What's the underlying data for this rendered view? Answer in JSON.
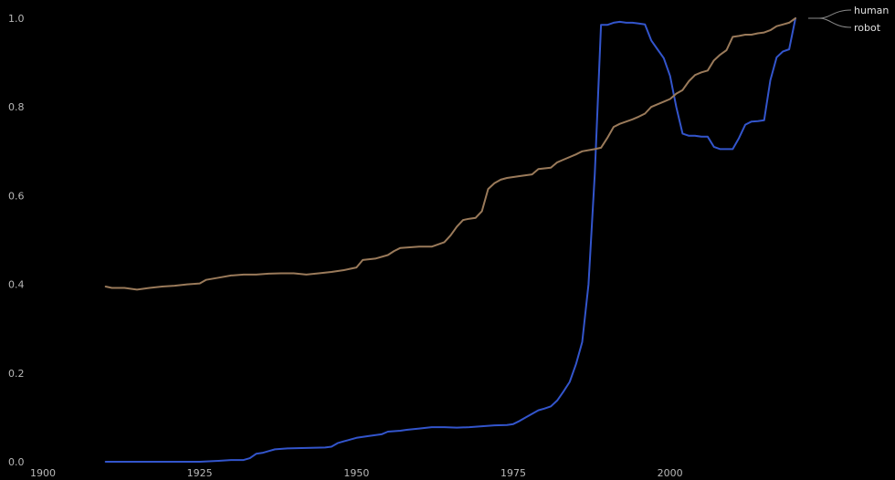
{
  "chart_data": {
    "type": "line",
    "title": "",
    "xlabel": "",
    "ylabel": "",
    "xlim": [
      1900,
      2035
    ],
    "ylim": [
      0,
      1
    ],
    "grid": false,
    "legend_position": "top-right",
    "background": "#000000",
    "x_ticks": [
      {
        "value": 1900,
        "label": "1900"
      },
      {
        "value": 1925,
        "label": "1925"
      },
      {
        "value": 1950,
        "label": "1950"
      },
      {
        "value": 1975,
        "label": "1975"
      },
      {
        "value": 2000,
        "label": "2000"
      }
    ],
    "y_ticks": [
      {
        "value": 0,
        "label": "0.0"
      },
      {
        "value": 0.2,
        "label": "0.2"
      },
      {
        "value": 0.4,
        "label": "0.4"
      },
      {
        "value": 0.6,
        "label": "0.6"
      },
      {
        "value": 0.8,
        "label": "0.8"
      },
      {
        "value": 1.0,
        "label": "1.0"
      }
    ],
    "series": [
      {
        "name": "human",
        "color": "#3355cc",
        "points": [
          [
            1910,
            0.0
          ],
          [
            1920,
            0.0
          ],
          [
            1925,
            0.0
          ],
          [
            1928,
            0.002
          ],
          [
            1930,
            0.004
          ],
          [
            1932,
            0.004
          ],
          [
            1933,
            0.008
          ],
          [
            1934,
            0.018
          ],
          [
            1935,
            0.02
          ],
          [
            1936,
            0.024
          ],
          [
            1937,
            0.028
          ],
          [
            1939,
            0.03
          ],
          [
            1942,
            0.031
          ],
          [
            1945,
            0.032
          ],
          [
            1946,
            0.034
          ],
          [
            1947,
            0.042
          ],
          [
            1948,
            0.046
          ],
          [
            1949,
            0.05
          ],
          [
            1950,
            0.054
          ],
          [
            1952,
            0.058
          ],
          [
            1954,
            0.062
          ],
          [
            1955,
            0.068
          ],
          [
            1957,
            0.07
          ],
          [
            1958,
            0.072
          ],
          [
            1960,
            0.075
          ],
          [
            1962,
            0.078
          ],
          [
            1964,
            0.078
          ],
          [
            1966,
            0.077
          ],
          [
            1968,
            0.078
          ],
          [
            1970,
            0.08
          ],
          [
            1972,
            0.082
          ],
          [
            1974,
            0.083
          ],
          [
            1975,
            0.085
          ],
          [
            1976,
            0.092
          ],
          [
            1977,
            0.1
          ],
          [
            1978,
            0.108
          ],
          [
            1979,
            0.116
          ],
          [
            1980,
            0.12
          ],
          [
            1981,
            0.125
          ],
          [
            1982,
            0.138
          ],
          [
            1983,
            0.158
          ],
          [
            1984,
            0.18
          ],
          [
            1985,
            0.22
          ],
          [
            1986,
            0.27
          ],
          [
            1987,
            0.4
          ],
          [
            1988,
            0.65
          ],
          [
            1989,
            0.985
          ],
          [
            1990,
            0.985
          ],
          [
            1991,
            0.99
          ],
          [
            1992,
            0.992
          ],
          [
            1993,
            0.99
          ],
          [
            1994,
            0.99
          ],
          [
            1995,
            0.988
          ],
          [
            1996,
            0.986
          ],
          [
            1997,
            0.95
          ],
          [
            1998,
            0.93
          ],
          [
            1999,
            0.91
          ],
          [
            2000,
            0.87
          ],
          [
            2001,
            0.8
          ],
          [
            2002,
            0.74
          ],
          [
            2003,
            0.735
          ],
          [
            2004,
            0.735
          ],
          [
            2005,
            0.733
          ],
          [
            2006,
            0.733
          ],
          [
            2007,
            0.71
          ],
          [
            2008,
            0.705
          ],
          [
            2009,
            0.705
          ],
          [
            2010,
            0.705
          ],
          [
            2011,
            0.73
          ],
          [
            2012,
            0.76
          ],
          [
            2013,
            0.767
          ],
          [
            2014,
            0.768
          ],
          [
            2015,
            0.77
          ],
          [
            2016,
            0.86
          ],
          [
            2017,
            0.912
          ],
          [
            2018,
            0.925
          ],
          [
            2019,
            0.93
          ],
          [
            2020,
            1.0
          ]
        ]
      },
      {
        "name": "robot",
        "color": "#9a7a5a",
        "points": [
          [
            1910,
            0.395
          ],
          [
            1911,
            0.392
          ],
          [
            1913,
            0.392
          ],
          [
            1915,
            0.388
          ],
          [
            1917,
            0.392
          ],
          [
            1919,
            0.395
          ],
          [
            1921,
            0.397
          ],
          [
            1923,
            0.4
          ],
          [
            1925,
            0.402
          ],
          [
            1926,
            0.41
          ],
          [
            1928,
            0.415
          ],
          [
            1930,
            0.42
          ],
          [
            1932,
            0.422
          ],
          [
            1934,
            0.422
          ],
          [
            1936,
            0.424
          ],
          [
            1938,
            0.425
          ],
          [
            1940,
            0.425
          ],
          [
            1942,
            0.422
          ],
          [
            1944,
            0.425
          ],
          [
            1946,
            0.428
          ],
          [
            1948,
            0.432
          ],
          [
            1950,
            0.438
          ],
          [
            1951,
            0.455
          ],
          [
            1953,
            0.458
          ],
          [
            1955,
            0.466
          ],
          [
            1956,
            0.475
          ],
          [
            1957,
            0.482
          ],
          [
            1958,
            0.483
          ],
          [
            1960,
            0.485
          ],
          [
            1962,
            0.485
          ],
          [
            1964,
            0.495
          ],
          [
            1965,
            0.51
          ],
          [
            1966,
            0.53
          ],
          [
            1967,
            0.545
          ],
          [
            1968,
            0.548
          ],
          [
            1969,
            0.55
          ],
          [
            1970,
            0.565
          ],
          [
            1971,
            0.615
          ],
          [
            1972,
            0.628
          ],
          [
            1973,
            0.636
          ],
          [
            1974,
            0.64
          ],
          [
            1976,
            0.644
          ],
          [
            1978,
            0.648
          ],
          [
            1979,
            0.66
          ],
          [
            1981,
            0.663
          ],
          [
            1982,
            0.675
          ],
          [
            1983,
            0.681
          ],
          [
            1985,
            0.693
          ],
          [
            1986,
            0.7
          ],
          [
            1988,
            0.705
          ],
          [
            1989,
            0.708
          ],
          [
            1990,
            0.73
          ],
          [
            1991,
            0.755
          ],
          [
            1992,
            0.762
          ],
          [
            1994,
            0.772
          ],
          [
            1995,
            0.778
          ],
          [
            1996,
            0.785
          ],
          [
            1997,
            0.8
          ],
          [
            1998,
            0.806
          ],
          [
            1999,
            0.812
          ],
          [
            2000,
            0.818
          ],
          [
            2001,
            0.83
          ],
          [
            2002,
            0.838
          ],
          [
            2003,
            0.858
          ],
          [
            2004,
            0.872
          ],
          [
            2005,
            0.878
          ],
          [
            2006,
            0.882
          ],
          [
            2007,
            0.905
          ],
          [
            2008,
            0.918
          ],
          [
            2009,
            0.928
          ],
          [
            2010,
            0.958
          ],
          [
            2011,
            0.96
          ],
          [
            2012,
            0.963
          ],
          [
            2013,
            0.963
          ],
          [
            2014,
            0.966
          ],
          [
            2015,
            0.968
          ],
          [
            2016,
            0.973
          ],
          [
            2017,
            0.982
          ],
          [
            2018,
            0.986
          ],
          [
            2019,
            0.99
          ],
          [
            2020,
            1.0
          ]
        ]
      }
    ]
  }
}
